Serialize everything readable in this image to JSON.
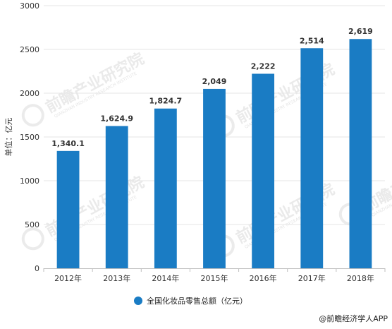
{
  "chart_data": {
    "type": "bar",
    "categories": [
      "2012年",
      "2013年",
      "2014年",
      "2015年",
      "2016年",
      "2017年",
      "2018年"
    ],
    "series": [
      {
        "name": "全国化妆品零售总额（亿元）",
        "values": [
          1340.1,
          1624.9,
          1824.7,
          2049,
          2222,
          2514,
          2619
        ],
        "labels": [
          "1,340.1",
          "1,624.9",
          "1,824.7",
          "2,049",
          "2,222",
          "2,514",
          "2,619"
        ],
        "color": "#1a7cc4"
      }
    ],
    "ylabel": "单位：亿元",
    "ylim": [
      0,
      3000
    ],
    "yticks": [
      0,
      500,
      1000,
      1500,
      2000,
      2500,
      3000
    ],
    "grid": true,
    "legend_position": "bottom"
  },
  "source": {
    "text": "@前瞻经济学人APP"
  },
  "watermark": {
    "text": "前瞻产业研究院",
    "subtext": "QIANZHAN INDUSTRY RESEARCH INSTITUTE"
  }
}
